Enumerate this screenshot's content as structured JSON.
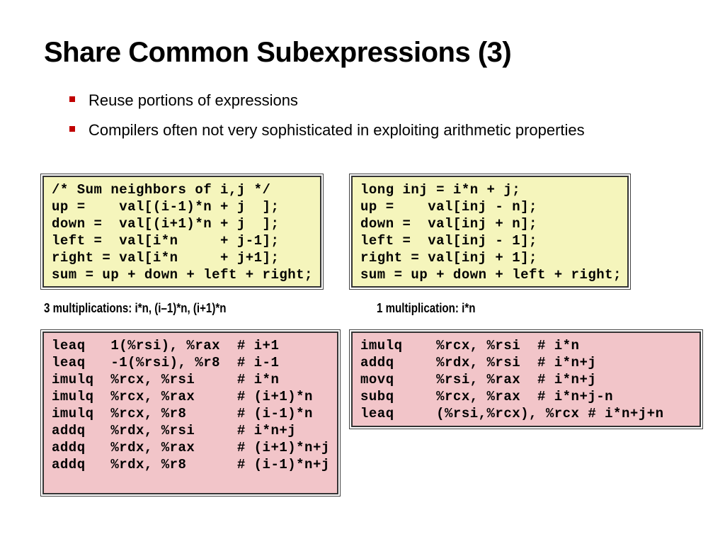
{
  "title": "Share Common Subexpressions (3)",
  "bullets": [
    "Reuse portions of expressions",
    "Compilers often not very sophisticated in exploiting arithmetic properties"
  ],
  "code_left": [
    "/* Sum neighbors of i,j */",
    "up =    val[(i-1)*n + j  ];",
    "down =  val[(i+1)*n + j  ];",
    "left =  val[i*n     + j-1];",
    "right = val[i*n     + j+1];",
    "sum = up + down + left + right;"
  ],
  "code_right": [
    "long inj = i*n + j;",
    "up =    val[inj - n];",
    "down =  val[inj + n];",
    "left =  val[inj - 1];",
    "right = val[inj + 1];",
    "sum = up + down + left + right;"
  ],
  "caption_left": "3 multiplications: i*n, (i–1)*n, (i+1)*n",
  "caption_right": "1 multiplication: i*n",
  "asm_left": [
    "leaq   1(%rsi), %rax  # i+1",
    "leaq   -1(%rsi), %r8  # i-1",
    "imulq  %rcx, %rsi     # i*n",
    "imulq  %rcx, %rax     # (i+1)*n",
    "imulq  %rcx, %r8      # (i-1)*n",
    "addq   %rdx, %rsi     # i*n+j",
    "addq   %rdx, %rax     # (i+1)*n+j",
    "addq   %rdx, %r8      # (i-1)*n+j"
  ],
  "asm_right": [
    "imulq    %rcx, %rsi  # i*n",
    "addq     %rdx, %rsi  # i*n+j",
    "movq     %rsi, %rax  # i*n+j",
    "subq     %rcx, %rax  # i*n+j-n",
    "leaq     (%rsi,%rcx), %rcx # i*n+j+n"
  ]
}
